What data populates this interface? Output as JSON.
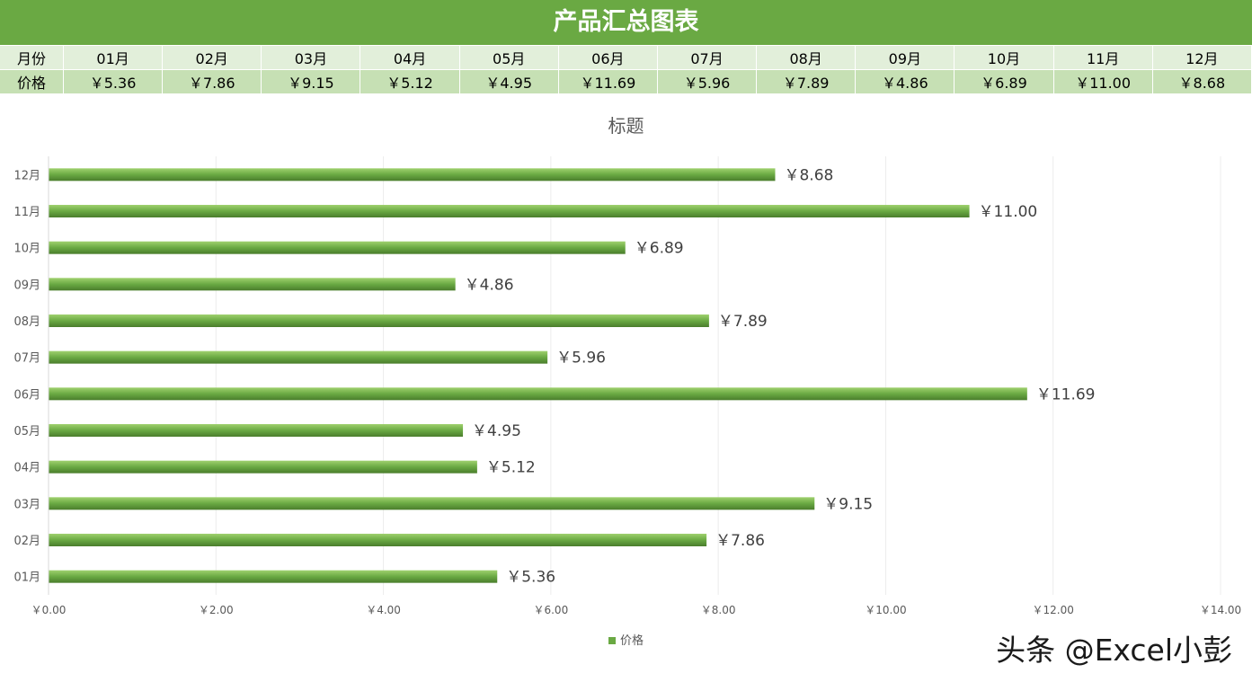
{
  "banner_title": "产品汇总图表",
  "table": {
    "month_header": "月份",
    "price_header": "价格",
    "months": [
      "01月",
      "02月",
      "03月",
      "04月",
      "05月",
      "06月",
      "07月",
      "08月",
      "09月",
      "10月",
      "11月",
      "12月"
    ],
    "prices": [
      "￥5.36",
      "￥7.86",
      "￥9.15",
      "￥5.12",
      "￥4.95",
      "￥11.69",
      "￥5.96",
      "￥7.89",
      "￥4.86",
      "￥6.89",
      "￥11.00",
      "￥8.68"
    ]
  },
  "chart_data": {
    "type": "bar",
    "orientation": "horizontal",
    "title": "标题",
    "categories": [
      "01月",
      "02月",
      "03月",
      "04月",
      "05月",
      "06月",
      "07月",
      "08月",
      "09月",
      "10月",
      "11月",
      "12月"
    ],
    "series": [
      {
        "name": "价格",
        "values": [
          5.36,
          7.86,
          9.15,
          5.12,
          4.95,
          11.69,
          5.96,
          7.89,
          4.86,
          6.89,
          11.0,
          8.68
        ]
      }
    ],
    "data_labels": [
      "￥5.36",
      "￥7.86",
      "￥9.15",
      "￥5.12",
      "￥4.95",
      "￥11.69",
      "￥5.96",
      "￥7.89",
      "￥4.86",
      "￥6.89",
      "￥11.00",
      "￥8.68"
    ],
    "xlim": [
      0,
      14
    ],
    "x_ticks": [
      0,
      2,
      4,
      6,
      8,
      10,
      12,
      14
    ],
    "x_tick_labels": [
      "￥0.00",
      "￥2.00",
      "￥4.00",
      "￥6.00",
      "￥8.00",
      "￥10.00",
      "￥12.00",
      "￥14.00"
    ],
    "grid": true,
    "legend_position": "bottom",
    "bar_color": "#6aa943"
  },
  "watermark": "头条 @Excel小彭"
}
